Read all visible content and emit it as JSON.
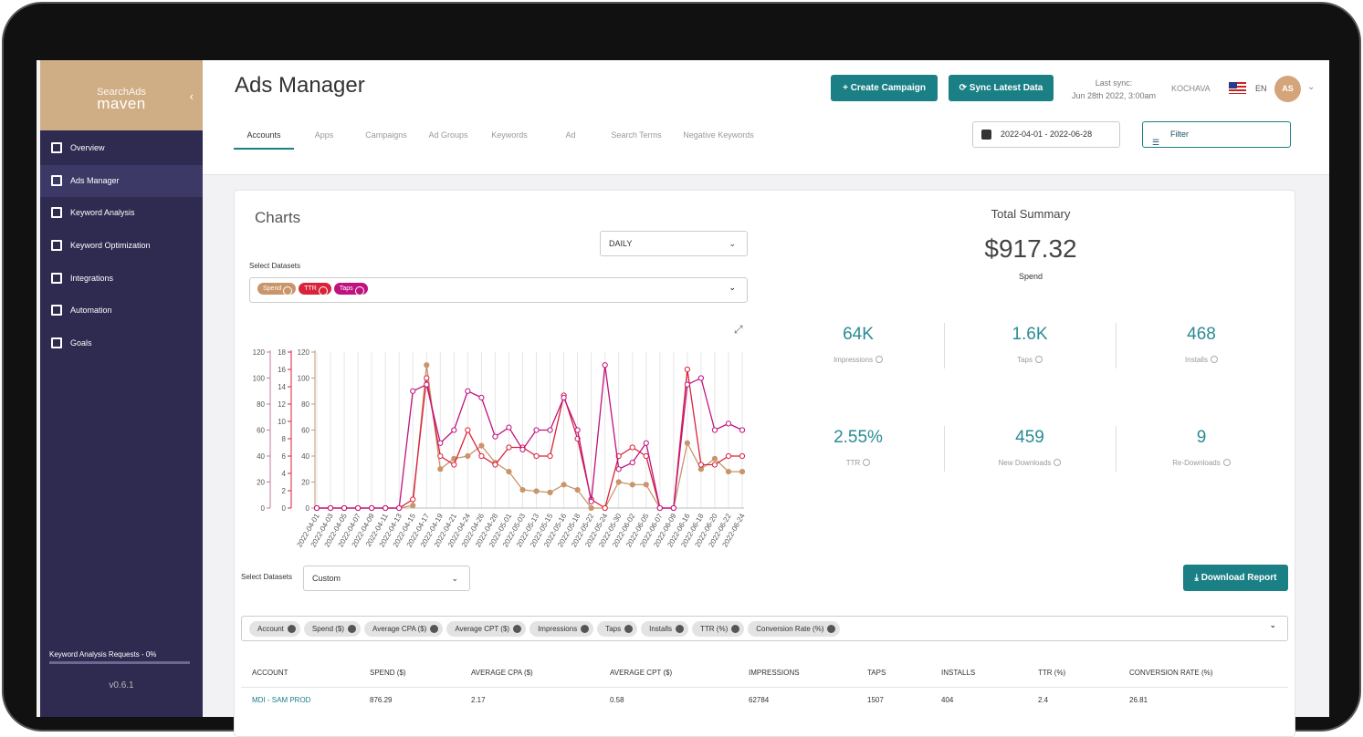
{
  "sidebar": {
    "brand_top": "SearchAds",
    "brand": "maven",
    "menu": [
      "Overview",
      "Ads Manager",
      "Keyword Analysis",
      "Keyword Optimization",
      "Integrations",
      "Automation",
      "Goals"
    ],
    "requests": "Keyword Analysis Requests - 0%",
    "version": "v0.6.1"
  },
  "header": {
    "title": "Ads Manager",
    "create": "Create Campaign",
    "sync": "Sync Latest Data",
    "last_sync_label": "Last sync:",
    "last_sync": "Jun 28th 2022, 3:00am",
    "org": "KOCHAVA",
    "lang": "EN",
    "avatar": "AS"
  },
  "tabs": [
    "Accounts",
    "Apps",
    "Campaigns",
    "Ad Groups",
    "Keywords",
    "Ad",
    "Search Terms",
    "Negative Keywords"
  ],
  "date_range": "2022-04-01 - 2022-06-28",
  "filter": "Filter",
  "charts": {
    "title": "Charts",
    "interval": "DAILY",
    "select_label": "Select Datasets"
  },
  "chart_data": {
    "type": "line",
    "categories": [
      "2022-04-01",
      "2022-04-03",
      "2022-04-05",
      "2022-04-07",
      "2022-04-09",
      "2022-04-11",
      "2022-04-13",
      "2022-04-15",
      "2022-04-17",
      "2022-04-19",
      "2022-04-21",
      "2022-04-24",
      "2022-04-26",
      "2022-04-28",
      "2022-05-01",
      "2022-05-03",
      "2022-05-13",
      "2022-05-15",
      "2022-05-16",
      "2022-05-18",
      "2022-05-22",
      "2022-05-24",
      "2022-05-30",
      "2022-06-02",
      "2022-06-05",
      "2022-06-07",
      "2022-06-09",
      "2022-06-16",
      "2022-06-18",
      "2022-06-20",
      "2022-06-22",
      "2022-06-24"
    ],
    "series": [
      {
        "name": "Spend",
        "color": "#c9956b",
        "axis": "y",
        "values": [
          0,
          0,
          0,
          0,
          0,
          0,
          0,
          2,
          110,
          30,
          38,
          40,
          48,
          35,
          28,
          14,
          13,
          12,
          18,
          14,
          0,
          0,
          20,
          18,
          18,
          0,
          0,
          50,
          30,
          38,
          28,
          28
        ]
      },
      {
        "name": "TTR",
        "color": "#d9233a",
        "axis": "y2",
        "values": [
          0,
          0,
          0,
          0,
          0,
          0,
          0,
          1,
          15,
          6,
          5,
          9,
          6,
          5,
          7,
          7,
          6,
          6,
          13,
          8,
          1,
          0,
          6,
          7,
          6,
          0,
          0,
          16,
          5,
          5,
          6,
          6
        ]
      },
      {
        "name": "Taps",
        "color": "#c0137f",
        "axis": "y3",
        "values": [
          0,
          0,
          0,
          0,
          0,
          0,
          0,
          90,
          95,
          50,
          60,
          90,
          85,
          55,
          62,
          45,
          60,
          60,
          85,
          60,
          5,
          110,
          30,
          35,
          50,
          0,
          0,
          95,
          100,
          60,
          65,
          60
        ]
      }
    ],
    "ylim": [
      0,
      120
    ],
    "yticks": [
      0,
      20,
      40,
      60,
      80,
      100,
      120
    ],
    "y2lim": [
      0,
      18
    ],
    "y2ticks": [
      0,
      2,
      4,
      6,
      8,
      10,
      12,
      14,
      16,
      18
    ],
    "y3lim": [
      0,
      120
    ],
    "y3ticks": [
      0,
      20,
      40,
      60,
      80,
      100,
      120
    ]
  },
  "summary": {
    "title": "Total Summary",
    "total": "$917.32",
    "total_label": "Spend",
    "metrics": [
      {
        "value": "64K",
        "label": "Impressions"
      },
      {
        "value": "1.6K",
        "label": "Taps"
      },
      {
        "value": "468",
        "label": "Installs"
      },
      {
        "value": "2.55%",
        "label": "TTR"
      },
      {
        "value": "459",
        "label": "New Downloads"
      },
      {
        "value": "9",
        "label": "Re-Downloads"
      }
    ]
  },
  "report": {
    "select_label": "Select Datasets",
    "select": "Custom",
    "download": "Download Report",
    "chips": [
      "Account",
      "Spend ($)",
      "Average CPA ($)",
      "Average CPT ($)",
      "Impressions",
      "Taps",
      "Installs",
      "TTR (%)",
      "Conversion Rate (%)"
    ]
  },
  "table": {
    "headers": [
      "ACCOUNT",
      "SPEND ($)",
      "AVERAGE CPA ($)",
      "AVERAGE CPT ($)",
      "IMPRESSIONS",
      "TAPS",
      "INSTALLS",
      "TTR (%)",
      "CONVERSION RATE (%)"
    ],
    "rows": [
      [
        "MDI - SAM PROD",
        876.29,
        2.17,
        0.58,
        62784,
        1507,
        404,
        2.4,
        26.81
      ]
    ]
  }
}
